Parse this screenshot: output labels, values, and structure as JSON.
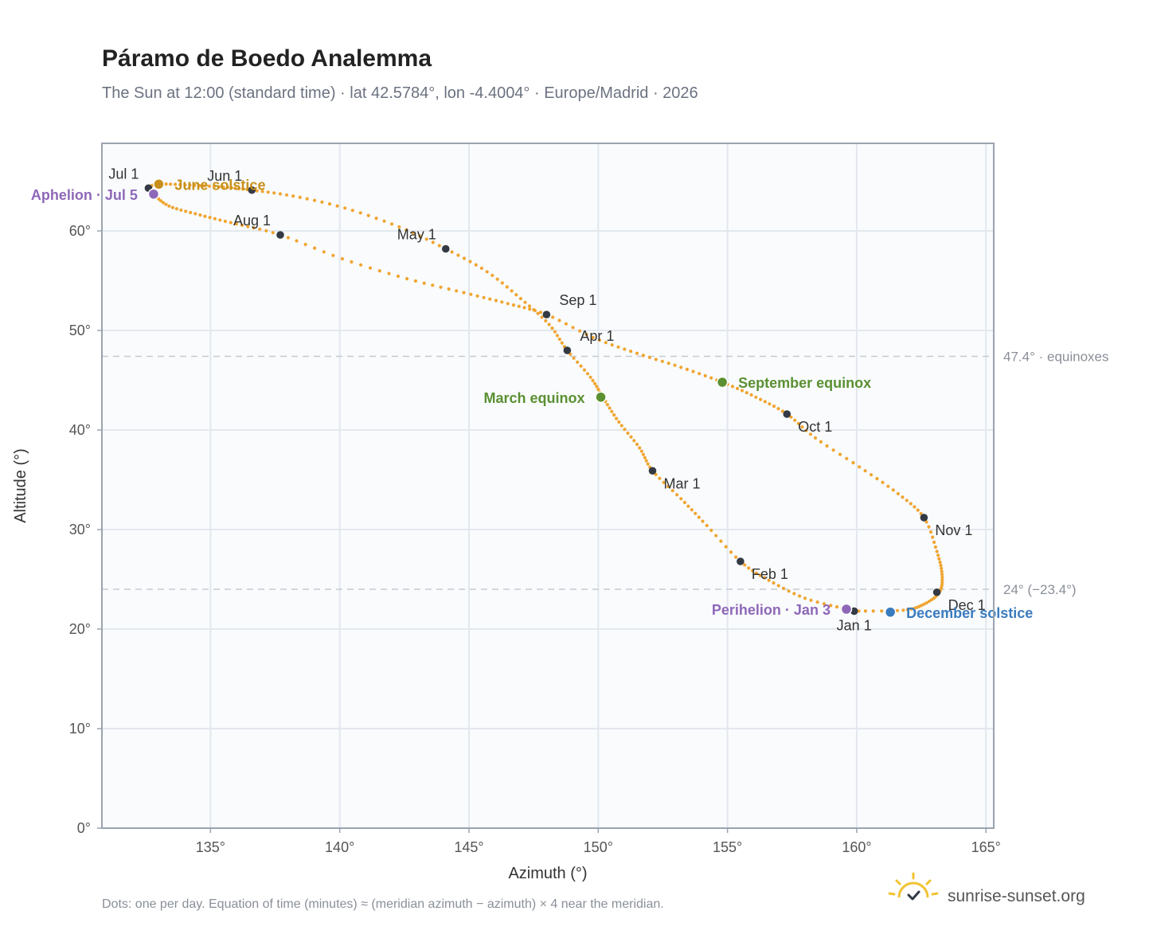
{
  "header": {
    "title": "Páramo de Boedo Analemma",
    "subtitle": "The Sun at 12:00 (standard time) · lat 42.5784°, lon -4.4004° · Europe/Madrid · 2026"
  },
  "footer": {
    "note": "Dots: one per day. Equation of time (minutes) ≈ (meridian azimuth − azimuth) × 4 near the meridian.",
    "brand": "sunrise-sunset.org",
    "brand_icon": "sun-check-icon"
  },
  "colors": {
    "curve": "#f0a530",
    "month_marker": "#333a44",
    "solstice_june": "#c8901a",
    "solstice_december": "#3a7bbf",
    "equinox": "#5a9032",
    "apsis": "#8e68b8",
    "plot_background": "#f9fbfd",
    "grid": "#e3e8ee",
    "axis_frame": "#9aa3af",
    "reference_line": "#c5cbd3"
  },
  "chart_data": {
    "type": "scatter",
    "xlabel": "Azimuth (°)",
    "ylabel": "Altitude (°)",
    "xlim": [
      130.8,
      165.3
    ],
    "ylim": [
      0,
      68.8
    ],
    "x_ticks": [
      135,
      140,
      145,
      150,
      155,
      160,
      165
    ],
    "x_tick_labels": [
      "135°",
      "140°",
      "145°",
      "150°",
      "155°",
      "160°",
      "165°"
    ],
    "y_ticks": [
      0,
      10,
      20,
      30,
      40,
      50,
      60
    ],
    "y_tick_labels": [
      "0°",
      "10°",
      "20°",
      "30°",
      "40°",
      "50°",
      "60°"
    ],
    "grid": true,
    "series": [
      {
        "path_note": "daily sun positions at 12:00 standard time",
        "points": [
          [
            159.9,
            21.8
          ],
          [
            161.8,
            21.9
          ],
          [
            162.6,
            22.5
          ],
          [
            163.2,
            23.7
          ],
          [
            163.3,
            25.5
          ],
          [
            163.1,
            27.8
          ],
          [
            162.6,
            31.2
          ],
          [
            161.6,
            33.6
          ],
          [
            160.1,
            36.3
          ],
          [
            158.4,
            39.2
          ],
          [
            157.3,
            41.6
          ],
          [
            156.1,
            43.3
          ],
          [
            154.8,
            44.8
          ],
          [
            153.2,
            46.3
          ],
          [
            151.5,
            47.7
          ],
          [
            149.8,
            49.3
          ],
          [
            148.0,
            51.6
          ],
          [
            146.5,
            52.7
          ],
          [
            144.8,
            53.8
          ],
          [
            142.6,
            55.2
          ],
          [
            140.1,
            57.2
          ],
          [
            137.7,
            59.6
          ],
          [
            136.0,
            60.7
          ],
          [
            134.6,
            61.6
          ],
          [
            133.4,
            62.5
          ],
          [
            132.8,
            63.7
          ],
          [
            132.6,
            64.3
          ],
          [
            133.0,
            64.7
          ],
          [
            134.2,
            64.6
          ],
          [
            135.5,
            64.4
          ],
          [
            136.6,
            64.1
          ],
          [
            138.2,
            63.5
          ],
          [
            140.2,
            62.3
          ],
          [
            142.3,
            60.4
          ],
          [
            144.1,
            58.2
          ],
          [
            145.7,
            55.9
          ],
          [
            147.0,
            53.2
          ],
          [
            148.1,
            50.6
          ],
          [
            148.8,
            48.0
          ],
          [
            149.7,
            45.3
          ],
          [
            150.2,
            43.2
          ],
          [
            150.8,
            40.8
          ],
          [
            151.6,
            38.2
          ],
          [
            152.1,
            35.9
          ],
          [
            153.2,
            33.1
          ],
          [
            154.2,
            30.4
          ],
          [
            155.5,
            26.8
          ],
          [
            156.6,
            24.9
          ],
          [
            158.0,
            23.1
          ],
          [
            159.6,
            22.0
          ],
          [
            159.9,
            21.8
          ]
        ]
      }
    ],
    "month_markers": [
      {
        "label": "Jan 1",
        "x": 159.9,
        "y": 21.8,
        "pos": "below"
      },
      {
        "label": "Feb 1",
        "x": 155.5,
        "y": 26.8,
        "pos": "below-right"
      },
      {
        "label": "Mar 1",
        "x": 152.1,
        "y": 35.9,
        "pos": "below-right"
      },
      {
        "label": "Apr 1",
        "x": 148.8,
        "y": 48.0,
        "pos": "above-right"
      },
      {
        "label": "May 1",
        "x": 144.1,
        "y": 58.2,
        "pos": "above-left"
      },
      {
        "label": "Jun 1",
        "x": 136.6,
        "y": 64.1,
        "pos": "above-left"
      },
      {
        "label": "Jul 1",
        "x": 132.6,
        "y": 64.3,
        "pos": "above-left"
      },
      {
        "label": "Aug 1",
        "x": 137.7,
        "y": 59.6,
        "pos": "above-left"
      },
      {
        "label": "Sep 1",
        "x": 148.0,
        "y": 51.6,
        "pos": "above-right"
      },
      {
        "label": "Oct 1",
        "x": 157.3,
        "y": 41.6,
        "pos": "below-right"
      },
      {
        "label": "Nov 1",
        "x": 162.6,
        "y": 31.2,
        "pos": "below-right"
      },
      {
        "label": "Dec 1",
        "x": 163.1,
        "y": 23.7,
        "pos": "below-right"
      }
    ],
    "events": [
      {
        "label": "June solstice",
        "x": 133.0,
        "y": 64.7,
        "color_key": "solstice_june",
        "side": "right"
      },
      {
        "label": "December solstice",
        "x": 161.3,
        "y": 21.7,
        "color_key": "solstice_december",
        "side": "right"
      },
      {
        "label": "March equinox",
        "x": 150.1,
        "y": 43.3,
        "color_key": "equinox",
        "side": "left"
      },
      {
        "label": "September equinox",
        "x": 154.8,
        "y": 44.8,
        "color_key": "equinox",
        "side": "right"
      },
      {
        "label": "Aphelion · Jul 5",
        "x": 132.8,
        "y": 63.7,
        "color_key": "apsis",
        "side": "left"
      },
      {
        "label": "Perihelion · Jan 3",
        "x": 159.6,
        "y": 22.0,
        "color_key": "apsis",
        "side": "left"
      }
    ],
    "reference_lines": [
      {
        "y": 47.4,
        "label": "47.4° · equinoxes"
      },
      {
        "y": 24.0,
        "label": "24° (−23.4°)"
      }
    ]
  }
}
